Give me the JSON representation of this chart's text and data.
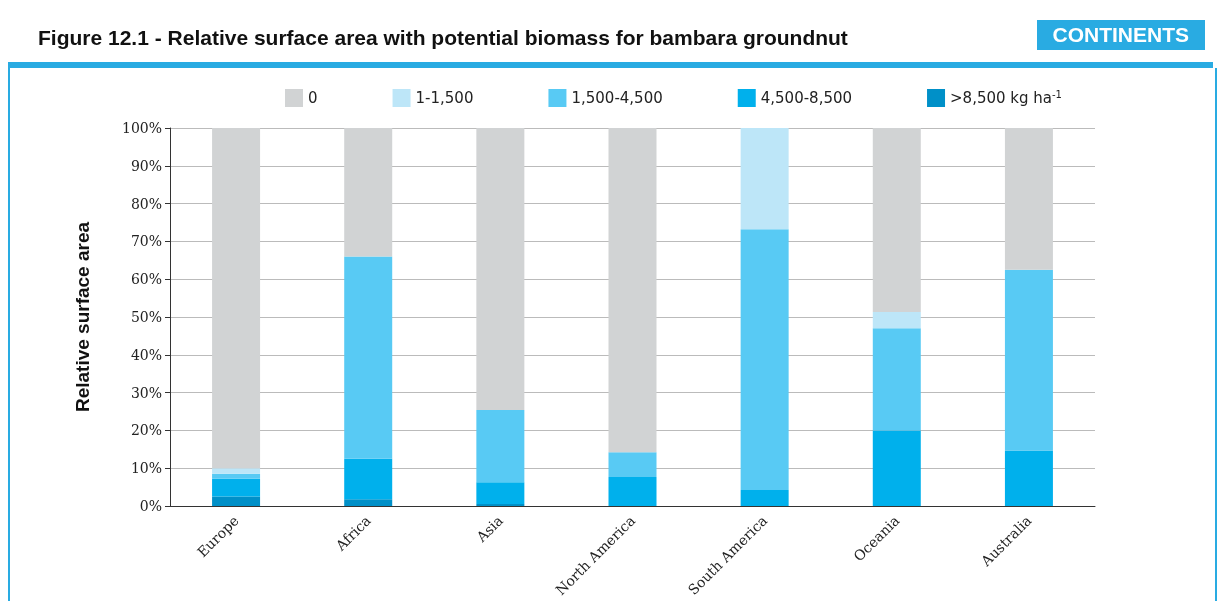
{
  "chart_data": {
    "type": "bar",
    "title": "Figure 12.1 - Relative surface area with potential biomass for bambara groundnut",
    "subtitle": "CONTINENTS",
    "ylabel": "Relative surface area",
    "categories": [
      "Europe",
      "Africa",
      "Asia",
      "North America",
      "South America",
      "Oceania",
      "Australia"
    ],
    "stacked": true,
    "grid": "y",
    "legend": "top",
    "ylim": [
      0,
      100
    ],
    "yticks": [
      {
        "value": 0,
        "label": "0%"
      },
      {
        "value": 10,
        "label": "10%"
      },
      {
        "value": 20,
        "label": "20%"
      },
      {
        "value": 30,
        "label": "30%"
      },
      {
        "value": 40,
        "label": "40%"
      },
      {
        "value": 50,
        "label": "50%"
      },
      {
        "value": 60,
        "label": "60%"
      },
      {
        "value": 70,
        "label": "70%"
      },
      {
        "value": 80,
        "label": "80%"
      },
      {
        "value": 90,
        "label": "90%"
      },
      {
        "value": 100,
        "label": "100%"
      }
    ],
    "series": [
      {
        "name": ">8,500 kg ha$^{-1}$",
        "color": "#0090c8",
        "values": [
          2.5,
          1.8,
          0.5,
          0,
          0,
          0,
          0
        ]
      },
      {
        "name": "4,500-8,500",
        "color": "#00b0ec",
        "values": [
          4.7,
          10.7,
          5.8,
          7.7,
          4.2,
          20,
          14.7
        ]
      },
      {
        "name": "1,500-4,500",
        "color": "#58caf4",
        "values": [
          1.3,
          53.5,
          19.1,
          6.5,
          69,
          27,
          47.8
        ]
      },
      {
        "name": "1-1,500",
        "color": "#bde6f8",
        "values": [
          1.5,
          0,
          0,
          0,
          26.8,
          4.3,
          0
        ]
      },
      {
        "name": "0",
        "color": "#d1d3d4",
        "values": [
          90,
          34,
          74.6,
          85.8,
          0,
          48.7,
          37.5
        ]
      }
    ]
  }
}
